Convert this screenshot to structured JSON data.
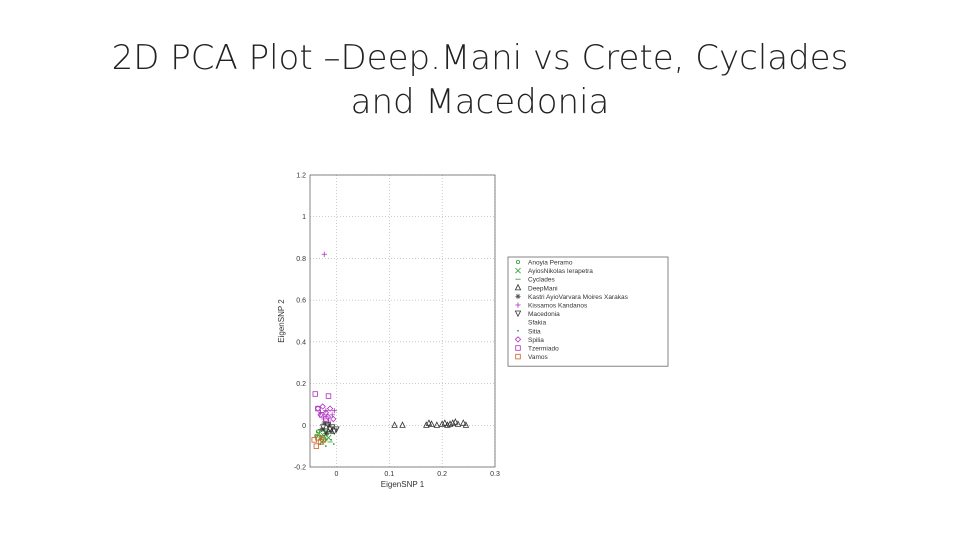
{
  "slide": {
    "title_line1": "2D PCA Plot –Deep.Mani vs Crete, Cyclades",
    "title_line2": "and Macedonia"
  },
  "chart_data": {
    "type": "scatter",
    "title": "",
    "xlabel": "EigenSNP 1",
    "ylabel": "EigenSNP 2",
    "xlim": [
      -0.05,
      0.3
    ],
    "ylim": [
      -0.2,
      1.2
    ],
    "xticks": [
      "0",
      "0.1",
      "0.2",
      "0.3"
    ],
    "yticks": [
      "-0.2",
      "0",
      "0.2",
      "0.4",
      "0.6",
      "0.8",
      "1",
      "1.2"
    ],
    "grid": true,
    "legend_position": "right",
    "series": [
      {
        "name": "Anoyia Peramo",
        "marker": "circle-small",
        "color": "#2ca02c",
        "points": [
          [
            -0.038,
            -0.05
          ],
          [
            -0.035,
            -0.03
          ],
          [
            -0.03,
            -0.06
          ],
          [
            -0.025,
            -0.02
          ],
          [
            -0.022,
            -0.07
          ],
          [
            -0.018,
            -0.04
          ]
        ]
      },
      {
        "name": "AyiosNikolas Ierapetra",
        "marker": "x",
        "color": "#2ca02c",
        "points": [
          [
            -0.033,
            -0.04
          ],
          [
            -0.028,
            -0.08
          ],
          [
            -0.024,
            -0.05
          ],
          [
            -0.02,
            -0.03
          ],
          [
            -0.015,
            -0.06
          ]
        ]
      },
      {
        "name": "Cyclades",
        "marker": "dash",
        "color": "#2ca02c",
        "points": [
          [
            -0.03,
            -0.02
          ],
          [
            -0.026,
            -0.05
          ],
          [
            -0.021,
            -0.07
          ],
          [
            -0.017,
            -0.03
          ],
          [
            -0.012,
            -0.08
          ],
          [
            -0.008,
            -0.04
          ]
        ]
      },
      {
        "name": "DeepMani",
        "marker": "triangle-up",
        "color": "#333333",
        "points": [
          [
            0.11,
            0.0
          ],
          [
            0.125,
            0.0
          ],
          [
            0.17,
            0.0
          ],
          [
            0.175,
            0.01
          ],
          [
            0.18,
            0.005
          ],
          [
            0.19,
            0.0
          ],
          [
            0.2,
            0.005
          ],
          [
            0.205,
            0.01
          ],
          [
            0.21,
            0.0
          ],
          [
            0.215,
            0.005
          ],
          [
            0.22,
            0.01
          ],
          [
            0.225,
            0.015
          ],
          [
            0.23,
            0.005
          ],
          [
            0.24,
            0.01
          ],
          [
            0.245,
            0.0
          ]
        ]
      },
      {
        "name": "Kastri AyioVarvara Moires Xarakas",
        "marker": "star",
        "color": "#555555",
        "points": [
          [
            -0.028,
            -0.02
          ],
          [
            -0.023,
            0.01
          ],
          [
            -0.019,
            -0.04
          ],
          [
            -0.014,
            0.0
          ],
          [
            -0.01,
            -0.03
          ]
        ]
      },
      {
        "name": "Kissamos Kandanos",
        "marker": "plus-circle",
        "color": "#b030c0",
        "points": [
          [
            -0.023,
            0.82
          ],
          [
            -0.03,
            0.06
          ],
          [
            -0.024,
            0.03
          ],
          [
            -0.02,
            0.07
          ],
          [
            -0.015,
            0.02
          ],
          [
            -0.008,
            0.05
          ],
          [
            -0.004,
            0.07
          ]
        ]
      },
      {
        "name": "Macedonia",
        "marker": "triangle-down",
        "color": "#333333",
        "points": [
          [
            -0.025,
            -0.01
          ],
          [
            -0.02,
            -0.03
          ],
          [
            -0.016,
            0.0
          ],
          [
            -0.012,
            -0.02
          ],
          [
            -0.008,
            -0.01
          ],
          [
            -0.004,
            -0.03
          ],
          [
            0.0,
            -0.02
          ]
        ]
      },
      {
        "name": "Sfakia",
        "marker": "none",
        "color": "#333333",
        "points": []
      },
      {
        "name": "Sitia",
        "marker": "dot",
        "color": "#2ca02c",
        "points": [
          [
            -0.03,
            -0.09
          ],
          [
            -0.02,
            -0.1
          ],
          [
            -0.01,
            -0.07
          ],
          [
            -0.005,
            -0.09
          ]
        ]
      },
      {
        "name": "Spilia",
        "marker": "diamond",
        "color": "#b030c0",
        "points": [
          [
            -0.035,
            0.08
          ],
          [
            -0.03,
            0.05
          ],
          [
            -0.026,
            0.09
          ],
          [
            -0.02,
            0.06
          ],
          [
            -0.016,
            0.04
          ],
          [
            -0.012,
            0.08
          ],
          [
            -0.006,
            0.03
          ]
        ]
      },
      {
        "name": "Tzermiado",
        "marker": "square",
        "color": "#b030c0",
        "points": [
          [
            -0.04,
            0.15
          ],
          [
            -0.035,
            0.08
          ],
          [
            -0.028,
            0.05
          ],
          [
            -0.015,
            0.14
          ],
          [
            -0.02,
            0.03
          ]
        ]
      },
      {
        "name": "Vamos",
        "marker": "square",
        "color": "#d06020",
        "points": [
          [
            -0.042,
            -0.07
          ],
          [
            -0.038,
            -0.1
          ],
          [
            -0.035,
            -0.06
          ],
          [
            -0.03,
            -0.08
          ],
          [
            -0.025,
            -0.07
          ]
        ]
      }
    ]
  }
}
